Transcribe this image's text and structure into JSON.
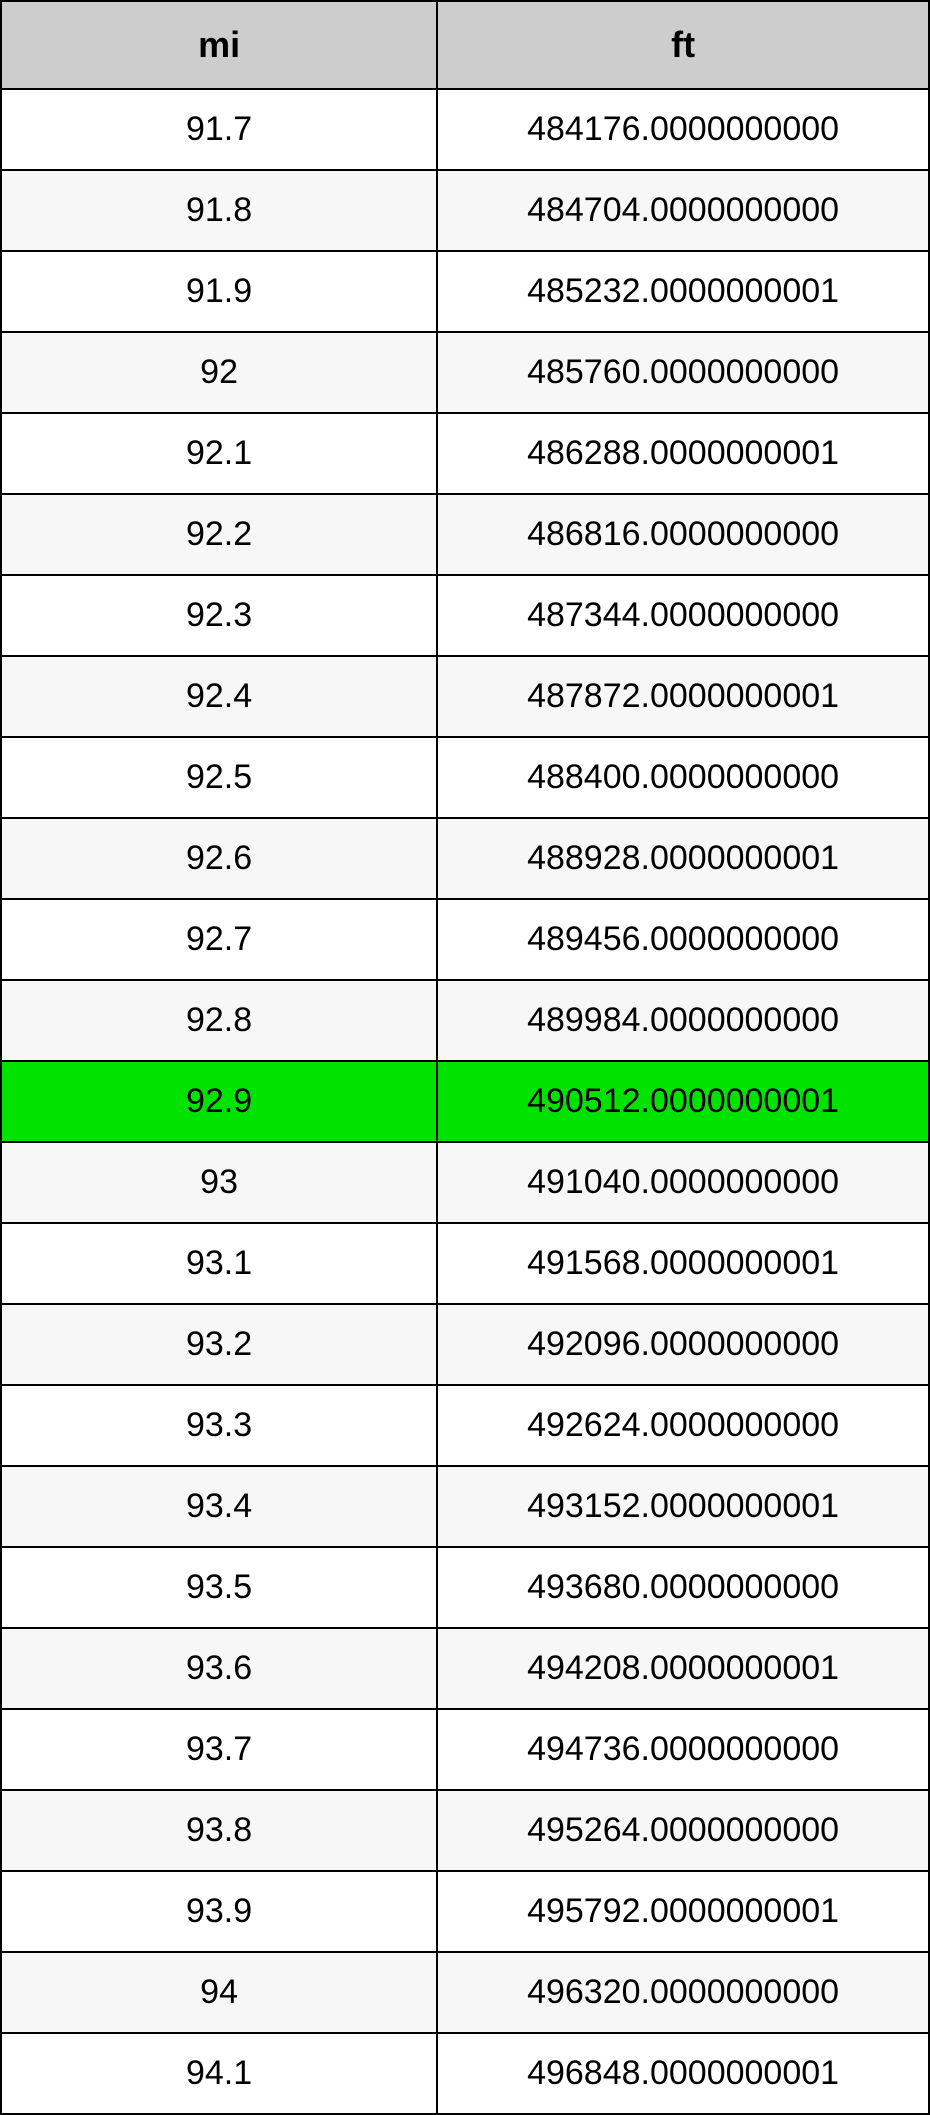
{
  "table": {
    "columns": [
      "mi",
      "ft"
    ],
    "highlight_row_index": 12,
    "highlight_color": "#00e300",
    "header_bg": "#cdcdcd",
    "row_even_bg": "#f7f7f7",
    "row_odd_bg": "#ffffff",
    "border_color": "#000000",
    "header_fontsize": 36,
    "cell_fontsize": 34,
    "rows": [
      [
        "91.7",
        "484176.0000000000"
      ],
      [
        "91.8",
        "484704.0000000000"
      ],
      [
        "91.9",
        "485232.0000000001"
      ],
      [
        "92",
        "485760.0000000000"
      ],
      [
        "92.1",
        "486288.0000000001"
      ],
      [
        "92.2",
        "486816.0000000000"
      ],
      [
        "92.3",
        "487344.0000000000"
      ],
      [
        "92.4",
        "487872.0000000001"
      ],
      [
        "92.5",
        "488400.0000000000"
      ],
      [
        "92.6",
        "488928.0000000001"
      ],
      [
        "92.7",
        "489456.0000000000"
      ],
      [
        "92.8",
        "489984.0000000000"
      ],
      [
        "92.9",
        "490512.0000000001"
      ],
      [
        "93",
        "491040.0000000000"
      ],
      [
        "93.1",
        "491568.0000000001"
      ],
      [
        "93.2",
        "492096.0000000000"
      ],
      [
        "93.3",
        "492624.0000000000"
      ],
      [
        "93.4",
        "493152.0000000001"
      ],
      [
        "93.5",
        "493680.0000000000"
      ],
      [
        "93.6",
        "494208.0000000001"
      ],
      [
        "93.7",
        "494736.0000000000"
      ],
      [
        "93.8",
        "495264.0000000000"
      ],
      [
        "93.9",
        "495792.0000000001"
      ],
      [
        "94",
        "496320.0000000000"
      ],
      [
        "94.1",
        "496848.0000000001"
      ]
    ]
  }
}
